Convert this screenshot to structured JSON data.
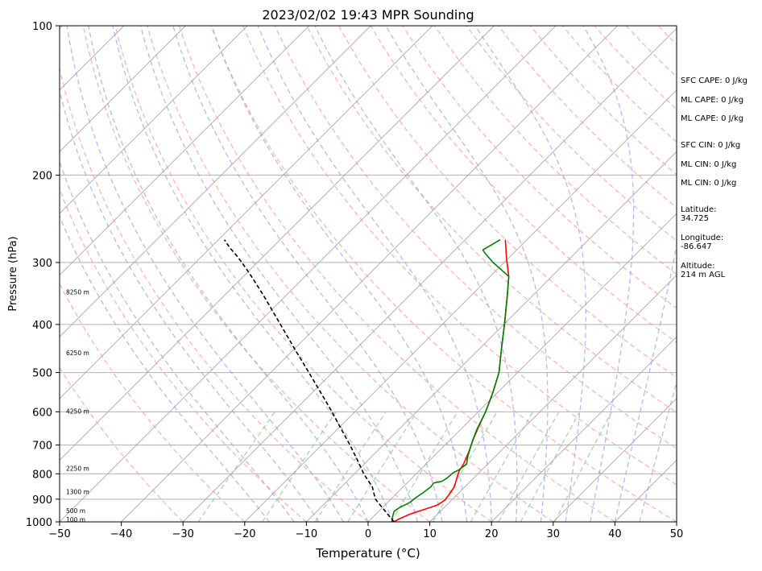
{
  "chart_data": {
    "type": "line",
    "subtype": "skew-T log-P sounding",
    "title": "2023/02/02 19:43 MPR Sounding",
    "xlabel": "Temperature (°C)",
    "ylabel": "Pressure (hPa)",
    "xlim": [
      -50,
      50
    ],
    "ylim": [
      1000,
      100
    ],
    "y_scale": "log",
    "grid": true,
    "x_ticks": [
      -50,
      -40,
      -30,
      -20,
      -10,
      0,
      10,
      20,
      30,
      40,
      50
    ],
    "x_tick_labels": [
      "−50",
      "−40",
      "−30",
      "−20",
      "−10",
      "0",
      "10",
      "20",
      "30",
      "40",
      "50"
    ],
    "y_ticks": [
      100,
      200,
      300,
      400,
      500,
      600,
      700,
      800,
      900,
      1000
    ],
    "y_tick_labels": [
      "100",
      "200",
      "300",
      "400",
      "500",
      "600",
      "700",
      "800",
      "900",
      "1000"
    ],
    "height_labels": [
      {
        "p": 345,
        "text": "8250 m"
      },
      {
        "p": 458,
        "text": "6250 m"
      },
      {
        "p": 600,
        "text": "4250 m"
      },
      {
        "p": 783,
        "text": "2250 m"
      },
      {
        "p": 873,
        "text": "1300 m"
      },
      {
        "p": 953,
        "text": "500 m"
      },
      {
        "p": 993,
        "text": "100 m"
      }
    ],
    "series": [
      {
        "color": "#ff0000",
        "style": "solid",
        "points": [
          [
            4.2,
            998
          ],
          [
            4.6,
            985
          ],
          [
            5.5,
            965
          ],
          [
            7.0,
            945
          ],
          [
            8.5,
            925
          ],
          [
            8.9,
            905
          ],
          [
            8.7,
            880
          ],
          [
            8.3,
            850
          ],
          [
            7.4,
            820
          ],
          [
            6.5,
            790
          ],
          [
            6.1,
            765
          ],
          [
            5.6,
            745
          ],
          [
            4.9,
            720
          ],
          [
            3.6,
            680
          ],
          [
            2.4,
            640
          ],
          [
            1.2,
            600
          ],
          [
            -0.7,
            550
          ],
          [
            -3.0,
            500
          ],
          [
            -6.3,
            450
          ],
          [
            -9.9,
            400
          ],
          [
            -14.1,
            350
          ],
          [
            -17.0,
            320
          ],
          [
            -20.2,
            295
          ],
          [
            -22.4,
            278
          ],
          [
            -23.5,
            270
          ]
        ]
      },
      {
        "color": "#008000",
        "style": "solid",
        "points": [
          [
            3.8,
            998
          ],
          [
            3.1,
            975
          ],
          [
            2.5,
            952
          ],
          [
            2.8,
            935
          ],
          [
            3.6,
            915
          ],
          [
            3.8,
            895
          ],
          [
            4.2,
            872
          ],
          [
            4.5,
            850
          ],
          [
            4.3,
            835
          ],
          [
            5.4,
            828
          ],
          [
            5.7,
            815
          ],
          [
            5.8,
            797
          ],
          [
            6.3,
            785
          ],
          [
            6.6,
            765
          ],
          [
            5.8,
            745
          ],
          [
            5.1,
            725
          ],
          [
            3.9,
            690
          ],
          [
            2.6,
            650
          ],
          [
            1.2,
            600
          ],
          [
            -0.7,
            550
          ],
          [
            -3.0,
            500
          ],
          [
            -6.3,
            450
          ],
          [
            -9.9,
            400
          ],
          [
            -14.1,
            350
          ],
          [
            -17.0,
            320
          ],
          [
            -21.8,
            300
          ],
          [
            -24.9,
            286
          ],
          [
            -25.5,
            283
          ],
          [
            -24.3,
            270
          ]
        ]
      },
      {
        "color": "#000000",
        "style": "dashed",
        "points": [
          [
            4.2,
            1000
          ],
          [
            -2.5,
            900
          ],
          [
            -5.0,
            850
          ],
          [
            -8.5,
            800
          ],
          [
            -11.8,
            750
          ],
          [
            -15.4,
            700
          ],
          [
            -19.4,
            650
          ],
          [
            -23.7,
            600
          ],
          [
            -28.5,
            550
          ],
          [
            -33.8,
            500
          ],
          [
            -39.7,
            450
          ],
          [
            -46.2,
            400
          ],
          [
            -53.6,
            350
          ],
          [
            -58.7,
            320
          ],
          [
            -62.5,
            300
          ],
          [
            -64.6,
            290
          ],
          [
            -66.9,
            280
          ],
          [
            -69.0,
            270
          ]
        ]
      }
    ],
    "reference_lines": {
      "isotherms_skewed": true,
      "dry_adiabats": "red dashed",
      "moist_adiabats": "blue dashed",
      "mixing_ratio_lines": "green dashed"
    }
  },
  "stats": {
    "sfc_cape": "SFC CAPE: 0 J/kg",
    "ml_cape_1": "ML CAPE: 0 J/kg",
    "ml_cape_2": "ML CAPE: 0 J/kg",
    "sfc_cin": "SFC CIN: 0 J/kg",
    "ml_cin_1": "ML CIN: 0 J/kg",
    "ml_cin_2": "ML CIN: 0 J/kg",
    "latitude": "Latitude:\n34.725",
    "longitude": "Longitude:\n-86.647",
    "altitude": "Altitude:\n214 m AGL"
  }
}
